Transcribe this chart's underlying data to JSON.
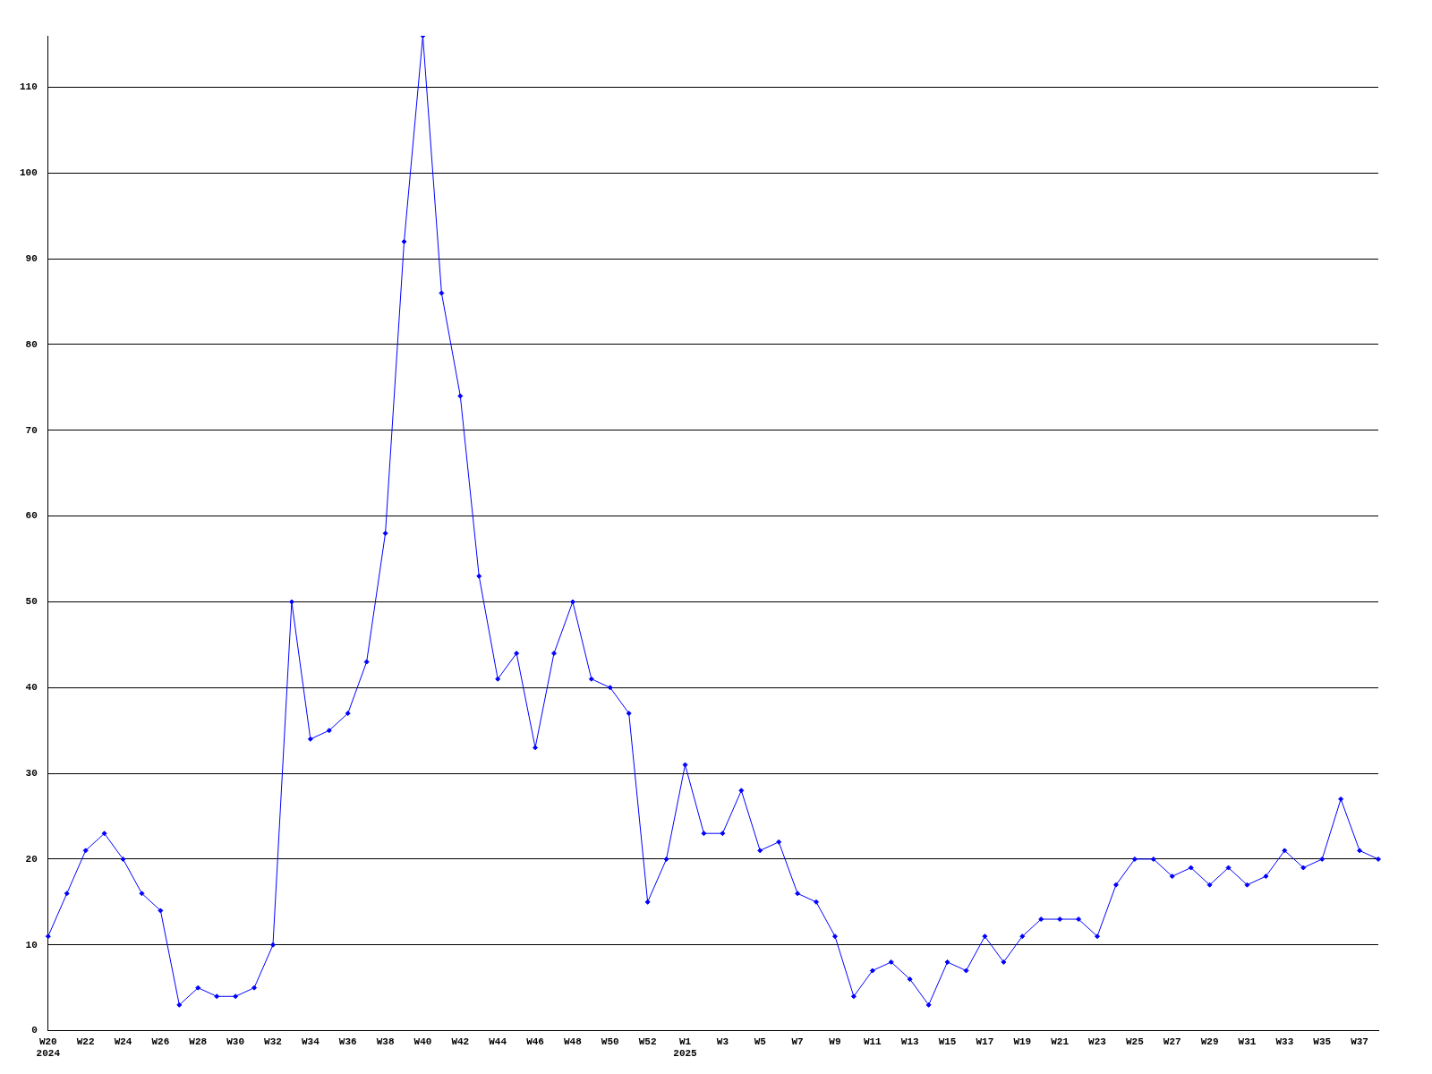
{
  "chart_data": {
    "type": "line",
    "categories": [
      "W20\n2024",
      null,
      "W22",
      null,
      "W24",
      null,
      "W26",
      null,
      "W28",
      null,
      "W30",
      null,
      "W32",
      null,
      "W34",
      null,
      "W36",
      null,
      "W38",
      null,
      "W40",
      null,
      "W42",
      null,
      "W44",
      null,
      "W46",
      null,
      "W48",
      null,
      "W50",
      null,
      "W52",
      null,
      "W1\n2025",
      null,
      "W3",
      null,
      "W5",
      null,
      "W7",
      null,
      "W9",
      null,
      "W11",
      null,
      "W13",
      null,
      "W15",
      null,
      "W17",
      null,
      "W19",
      null,
      "W21",
      null,
      "W23",
      null,
      "W25",
      null,
      "W27",
      null,
      "W29",
      null,
      "W31",
      null,
      "W33",
      null,
      "W35",
      null,
      "W37",
      null
    ],
    "series": [
      {
        "color": "#0000ff",
        "values": [
          11,
          16,
          21,
          23,
          20,
          16,
          14,
          3,
          5,
          4,
          4,
          5,
          10,
          50,
          34,
          35,
          37,
          43,
          58,
          92,
          116,
          86,
          74,
          53,
          41,
          44,
          33,
          44,
          50,
          41,
          40,
          37,
          15,
          20,
          31,
          23,
          23,
          28,
          21,
          22,
          16,
          15,
          11,
          4,
          7,
          8,
          6,
          3,
          8,
          7,
          11,
          8,
          11,
          13,
          13,
          13,
          11,
          17,
          20,
          20,
          18,
          19,
          17,
          19,
          17,
          18,
          21,
          19,
          20,
          27,
          21,
          20
        ]
      }
    ],
    "ylim": [
      0,
      116
    ],
    "yticks": [
      0,
      10,
      20,
      30,
      40,
      50,
      60,
      70,
      80,
      90,
      100,
      110
    ],
    "grid": "y",
    "legend": false,
    "marker": "diamond",
    "line_style": "solid"
  }
}
